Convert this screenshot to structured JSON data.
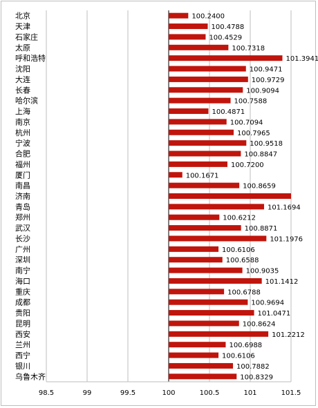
{
  "chart_data": {
    "type": "bar",
    "orientation": "horizontal",
    "title": "",
    "xlabel": "",
    "ylabel": "",
    "categories": [
      "北京",
      "天津",
      "石家庄",
      "太原",
      "呼和浩特",
      "沈阳",
      "大连",
      "长春",
      "哈尔滨",
      "上海",
      "南京",
      "杭州",
      "宁波",
      "合肥",
      "福州",
      "厦门",
      "南昌",
      "济南",
      "青岛",
      "郑州",
      "武汉",
      "长沙",
      "广州",
      "深圳",
      "南宁",
      "海口",
      "重庆",
      "成都",
      "贵阳",
      "昆明",
      "西安",
      "兰州",
      "西宁",
      "银川",
      "乌鲁木齐"
    ],
    "values": [
      100.24,
      100.4788,
      100.4529,
      100.7318,
      101.3941,
      100.9471,
      100.9729,
      100.9094,
      100.7588,
      100.4871,
      100.7094,
      100.7965,
      100.9518,
      100.8847,
      100.72,
      100.1671,
      100.8659,
      101.5,
      101.1694,
      100.6212,
      100.8871,
      101.1976,
      100.6106,
      100.6588,
      100.9035,
      101.1412,
      100.6788,
      100.9694,
      101.0471,
      100.8624,
      101.2212,
      100.6988,
      100.6106,
      100.7882,
      100.8329
    ],
    "value_labels": [
      "100.2400",
      "100.4788",
      "100.4529",
      "100.7318",
      "101.3941",
      "100.9471",
      "100.9729",
      "100.9094",
      "100.7588",
      "100.4871",
      "100.7094",
      "100.7965",
      "100.9518",
      "100.8847",
      "100.7200",
      "100.1671",
      "100.8659",
      "",
      "101.1694",
      "100.6212",
      "100.8871",
      "101.1976",
      "100.6106",
      "100.6588",
      "100.9035",
      "101.1412",
      "100.6788",
      "100.9694",
      "101.0471",
      "100.8624",
      "101.2212",
      "100.6988",
      "100.6106",
      "100.7882",
      "100.8329"
    ],
    "xlim": [
      98.5,
      101.5
    ],
    "xticks": [
      "98.5",
      "99",
      "99.5",
      "100",
      "100.5",
      "101",
      "101.5"
    ],
    "axis_origin": 100,
    "grid": "vertical",
    "legend": "none",
    "bar_color": "#C0150C"
  }
}
